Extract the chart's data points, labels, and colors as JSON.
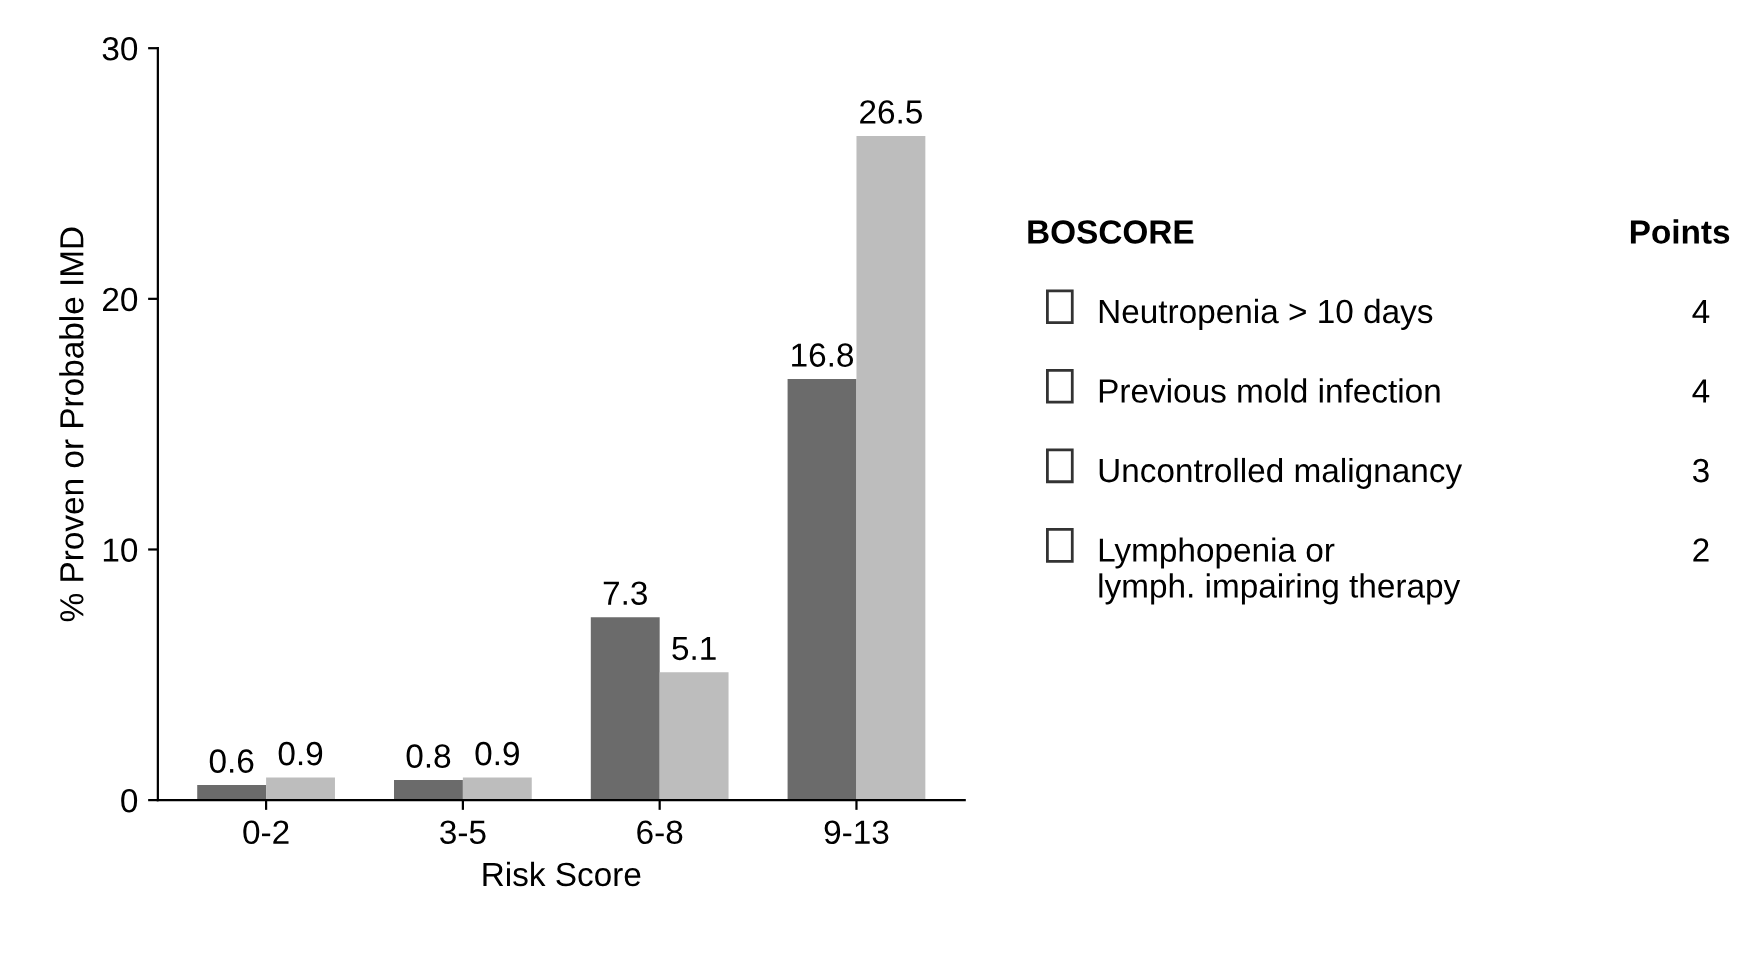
{
  "chart_data": [
    {
      "type": "bar",
      "xlabel": "Risk Score",
      "ylabel": "% Proven or Probable IMD",
      "categories": [
        "0-2",
        "3-5",
        "6-8",
        "9-13"
      ],
      "series": [
        {
          "color": "#6b6b6b",
          "values": [
            0.6,
            0.8,
            7.3,
            16.8
          ]
        },
        {
          "color": "#bdbdbd",
          "values": [
            0.9,
            0.9,
            5.1,
            26.5
          ]
        }
      ],
      "ylim": [
        0,
        30
      ],
      "yticks": [
        0,
        10,
        20,
        30
      ],
      "data_labels": true,
      "grid": false,
      "legend": false
    },
    {
      "type": "other",
      "annotations": [
        "BOSCORE",
        "Points",
        "Neutropenia > 10 days",
        "4",
        "Previous mold infection",
        "4",
        "Uncontrolled malignancy",
        "3",
        "Lymphopenia or\nlymph. impairing therapy",
        "2"
      ]
    }
  ]
}
